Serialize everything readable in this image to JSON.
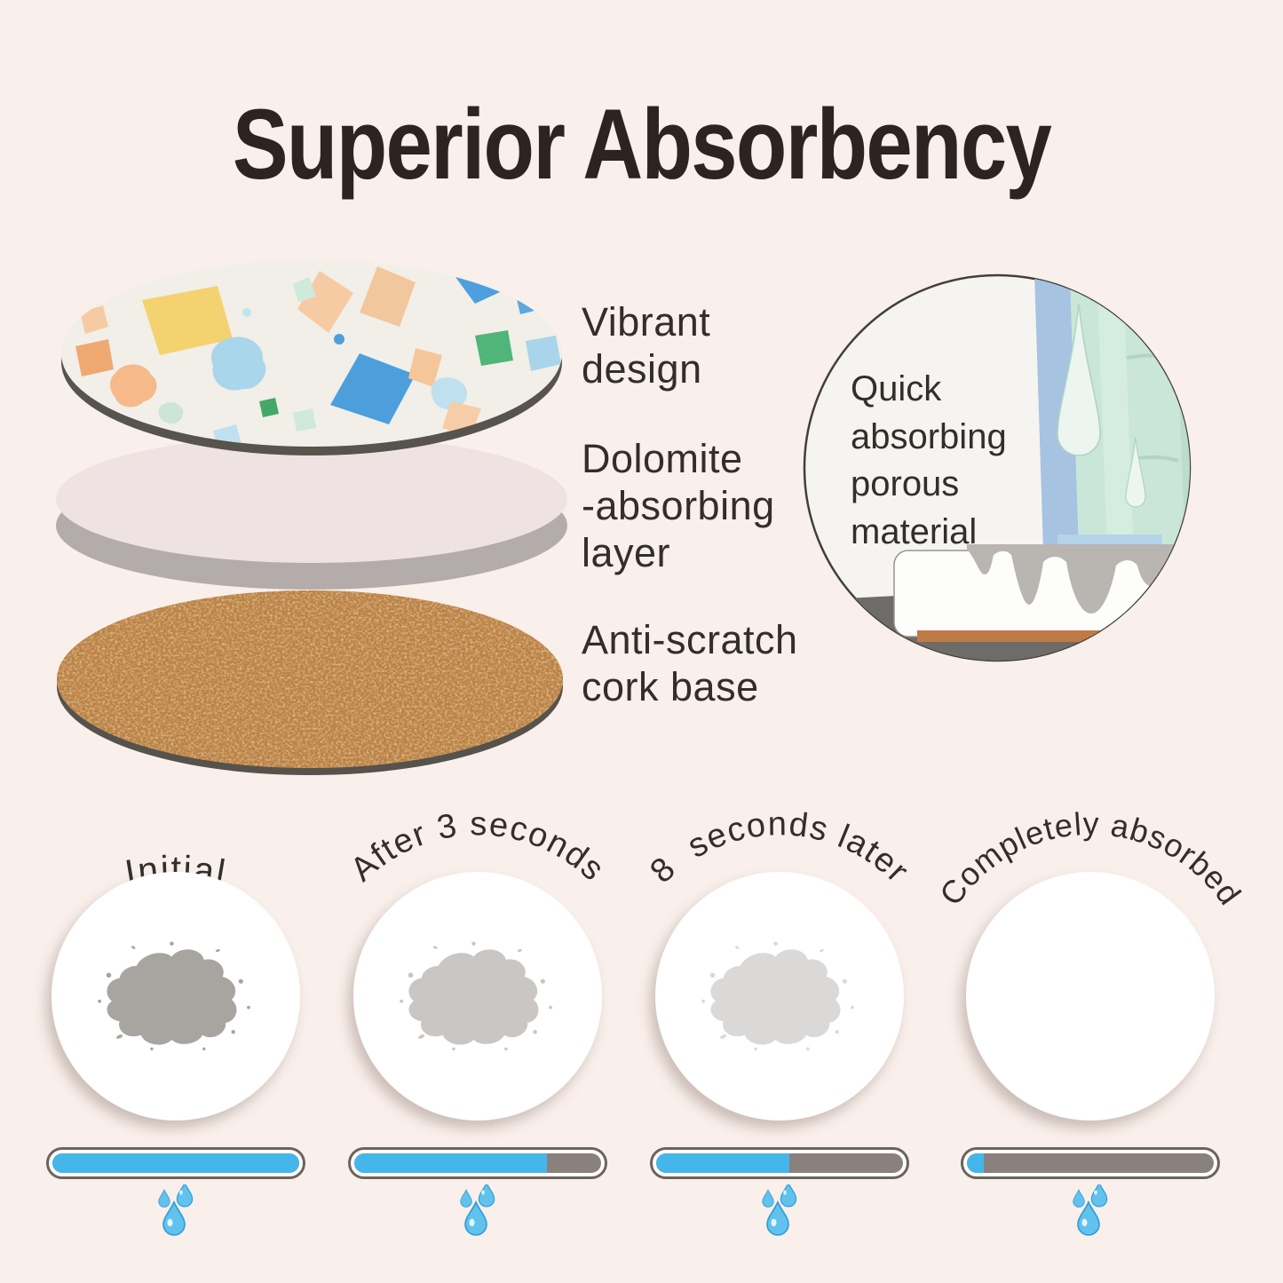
{
  "title": "Superior Absorbency",
  "colors": {
    "bg": "#f9efeb",
    "title": "#2e241f",
    "text": "#332e2a",
    "blue": "#45b6e9",
    "bar-gray": "#8a817c",
    "bar-border": "#6b635d"
  },
  "layer_diagram": {
    "labels": [
      {
        "lines": [
          "Vibrant",
          "design"
        ]
      },
      {
        "lines": [
          "Dolomite",
          "-absorbing",
          "layer"
        ]
      },
      {
        "lines": [
          "Anti-scratch",
          "cork base"
        ]
      }
    ]
  },
  "inset": {
    "lines": [
      "Quick",
      "absorbing",
      "porous",
      "material"
    ]
  },
  "stages": [
    {
      "label": "Initial",
      "progress_percent": 100,
      "stain_color": "#a8a5a1"
    },
    {
      "label": "After 3 seconds",
      "progress_percent": 78,
      "stain_color": "#c9c6c3"
    },
    {
      "label": "8  seconds later",
      "progress_percent": 54,
      "stain_color": "#dbd9d7"
    },
    {
      "label": "Completely absorbed",
      "progress_percent": 7,
      "stain_color": ""
    }
  ]
}
